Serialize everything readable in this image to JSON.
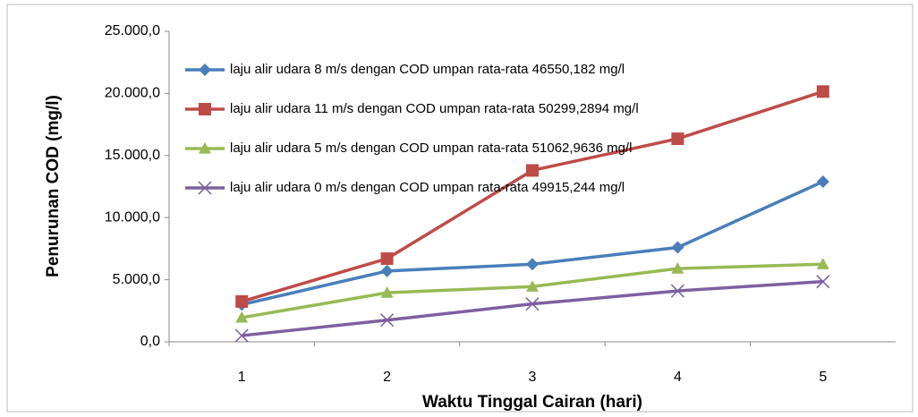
{
  "chart_data": {
    "type": "line",
    "x_label": "Waktu Tinggal Cairan (hari)",
    "y_label": "Penurunan COD  (mg/l)",
    "categories": [
      "1",
      "2",
      "3",
      "4",
      "5"
    ],
    "ylim": [
      0,
      25000
    ],
    "yticks": [
      {
        "value": 0,
        "label": "0,0"
      },
      {
        "value": 5000,
        "label": "5.000,0"
      },
      {
        "value": 10000,
        "label": "10.000,0"
      },
      {
        "value": 15000,
        "label": "15.000,0"
      },
      {
        "value": 20000,
        "label": "20.000,0"
      },
      {
        "value": 25000,
        "label": "25.000,0"
      }
    ],
    "legend": "top-left",
    "series": [
      {
        "name": "laju alir udara 8 m/s dengan COD umpan rata-rata 46550,182 mg/l",
        "color": "#4a7ebb",
        "marker": "diamond",
        "values": [
          3000,
          5700,
          6250,
          7600,
          12900
        ]
      },
      {
        "name": "laju alir udara 11 m/s dengan COD umpan rata-rata 50299,2894 mg/l",
        "color": "#be4b48",
        "marker": "square",
        "values": [
          3250,
          6700,
          13800,
          16350,
          20150
        ]
      },
      {
        "name": "laju alir udara 5 m/s dengan COD umpan rata-rata 51062,9636 mg/l",
        "color": "#98b954",
        "marker": "triangle",
        "values": [
          1950,
          3950,
          4450,
          5900,
          6250
        ]
      },
      {
        "name": "laju alir udara 0 m/s dengan COD umpan rata-rata 49915,244 mg/l",
        "color": "#7d60a0",
        "marker": "x",
        "values": [
          500,
          1750,
          3050,
          4100,
          4850
        ]
      }
    ]
  }
}
